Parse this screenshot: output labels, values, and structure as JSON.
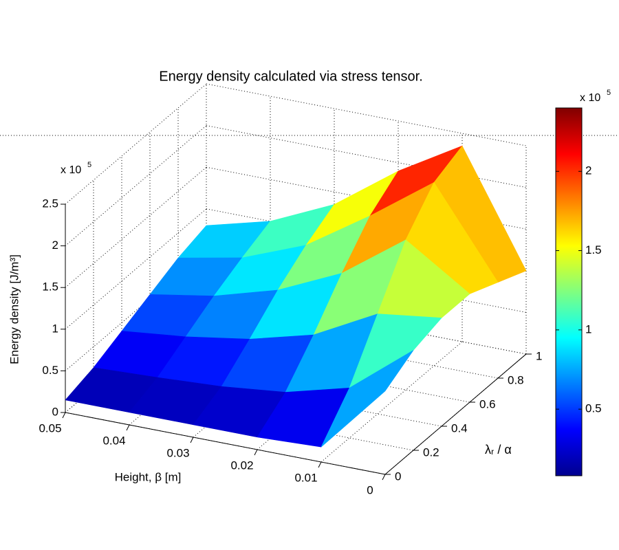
{
  "chart_data": {
    "type": "surface",
    "title": "Energy density calculated via stress tensor.",
    "xlabel": "Height, β [m]",
    "ylabel": "λᵣ / α",
    "zlabel": "Energy density [J/m³]",
    "z_multiplier": "x 10",
    "z_exponent": "5",
    "x": [
      0.05,
      0.04,
      0.03,
      0.02,
      0.01,
      0
    ],
    "y": [
      0,
      0.2,
      0.4,
      0.6,
      0.8,
      1
    ],
    "z": [
      [
        15000,
        25000,
        40000,
        55000,
        70000,
        80000
      ],
      [
        15000,
        28000,
        48000,
        68000,
        85000,
        100000
      ],
      [
        15000,
        32000,
        60000,
        90000,
        115000,
        135000
      ],
      [
        15000,
        40000,
        80000,
        125000,
        165000,
        190000
      ],
      [
        18000,
        60000,
        120000,
        180000,
        220000,
        235000
      ],
      [
        100000,
        120000,
        130000,
        130000,
        115000,
        100000
      ]
    ],
    "xlim": [
      0.05,
      0
    ],
    "xticks": [
      0.05,
      0.04,
      0.03,
      0.02,
      0.01,
      0
    ],
    "ylim": [
      0,
      1
    ],
    "yticks": [
      0,
      0.2,
      0.4,
      0.6,
      0.8,
      1
    ],
    "zlim": [
      0,
      250000
    ],
    "zticks": [
      0,
      {
        "value": 50000,
        "label": "0.5"
      },
      {
        "value": 100000,
        "label": "1"
      },
      {
        "value": 150000,
        "label": "1.5"
      },
      {
        "value": 200000,
        "label": "2"
      },
      {
        "value": 250000,
        "label": "2.5"
      }
    ],
    "colormap": "jet",
    "clim": [
      8000,
      240000
    ],
    "colorbar_multiplier": "x 10",
    "colorbar_exponent": "5",
    "colorbar_ticks": [
      {
        "value": 50000,
        "label": "0.5"
      },
      {
        "value": 100000,
        "label": "1"
      },
      {
        "value": 150000,
        "label": "1.5"
      },
      {
        "value": 200000,
        "label": "2"
      }
    ],
    "grid": true
  }
}
